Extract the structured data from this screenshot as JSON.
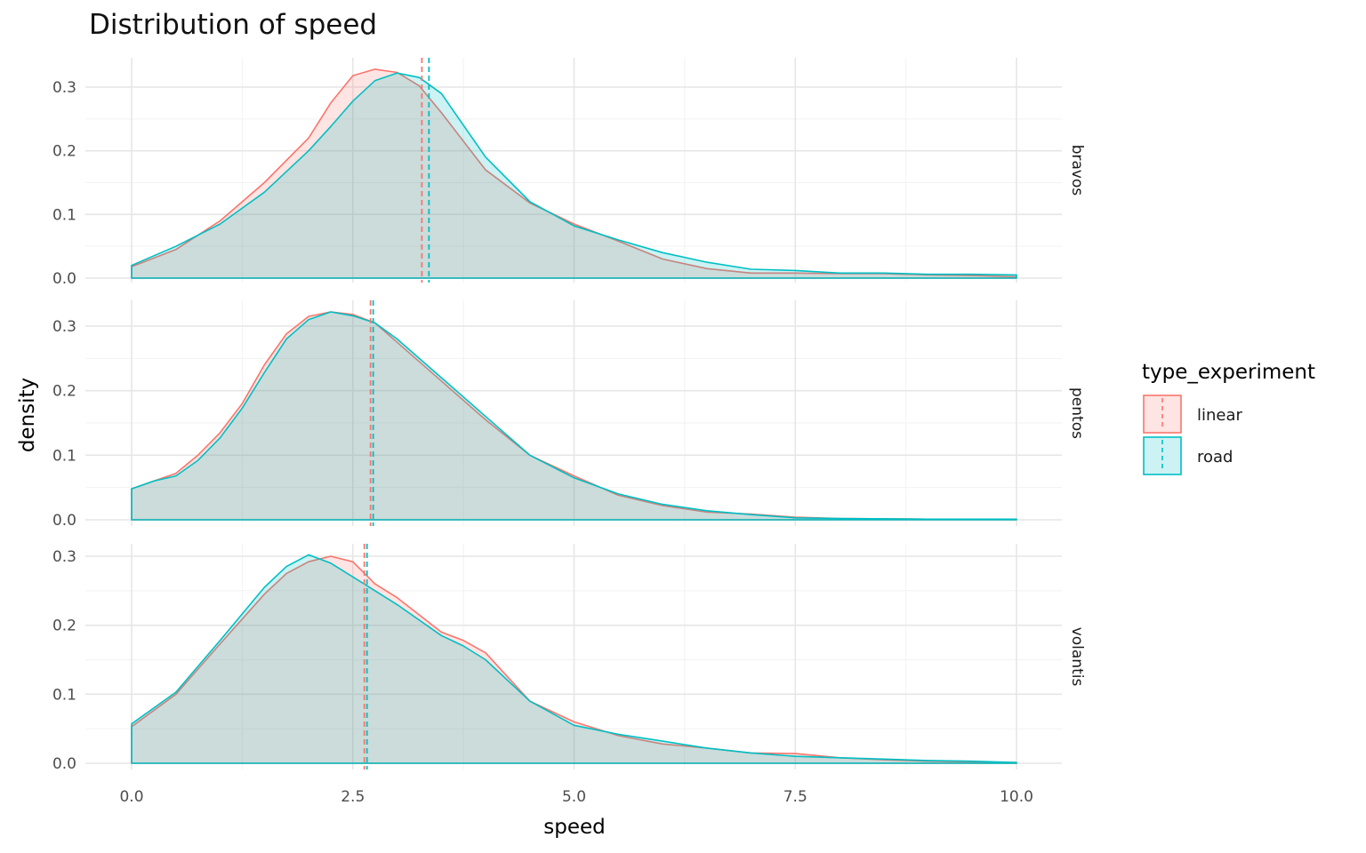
{
  "chart_data": {
    "type": "area",
    "title": "Distribution of speed",
    "xlabel": "speed",
    "ylabel": "density",
    "xlim": [
      -0.5,
      10.5
    ],
    "x_ticks": [
      "0.0",
      "2.5",
      "5.0",
      "7.5",
      "10.0"
    ],
    "y_ticks": [
      "0.0",
      "0.1",
      "0.2",
      "0.3"
    ],
    "grid": true,
    "legend": {
      "title": "type_experiment",
      "placement": "right",
      "entries": [
        "linear",
        "road"
      ]
    },
    "colors": {
      "linear": "#F8766D",
      "road": "#00BFC4"
    },
    "panels": [
      {
        "label": "bravos",
        "ylim": [
          0,
          0.33
        ],
        "means": {
          "linear": 3.28,
          "road": 3.36
        },
        "series": [
          {
            "name": "linear",
            "x": [
              0,
              0.5,
              1.0,
              1.5,
              2.0,
              2.25,
              2.5,
              2.75,
              3.0,
              3.25,
              3.5,
              4.0,
              4.5,
              5.0,
              5.5,
              6.0,
              6.5,
              7.0,
              7.5,
              8.0,
              8.5,
              9.0,
              9.5,
              10.0
            ],
            "y": [
              0.018,
              0.045,
              0.09,
              0.15,
              0.22,
              0.275,
              0.318,
              0.328,
              0.323,
              0.302,
              0.26,
              0.17,
              0.118,
              0.085,
              0.058,
              0.03,
              0.015,
              0.008,
              0.008,
              0.007,
              0.007,
              0.005,
              0.004,
              0.002
            ]
          },
          {
            "name": "road",
            "x": [
              0,
              0.5,
              1.0,
              1.5,
              2.0,
              2.25,
              2.5,
              2.75,
              3.0,
              3.25,
              3.5,
              4.0,
              4.5,
              5.0,
              5.5,
              6.0,
              6.5,
              7.0,
              7.5,
              8.0,
              8.5,
              9.0,
              9.5,
              10.0
            ],
            "y": [
              0.02,
              0.05,
              0.085,
              0.135,
              0.2,
              0.238,
              0.278,
              0.31,
              0.322,
              0.315,
              0.29,
              0.19,
              0.12,
              0.082,
              0.06,
              0.04,
              0.025,
              0.014,
              0.012,
              0.008,
              0.008,
              0.006,
              0.006,
              0.005
            ]
          }
        ]
      },
      {
        "label": "pentos",
        "ylim": [
          0,
          0.33
        ],
        "means": {
          "linear": 2.7,
          "road": 2.73
        },
        "series": [
          {
            "name": "linear",
            "x": [
              0,
              0.25,
              0.5,
              0.75,
              1.0,
              1.25,
              1.5,
              1.75,
              2.0,
              2.25,
              2.5,
              2.75,
              3.0,
              3.5,
              4.0,
              4.5,
              5.0,
              5.5,
              6.0,
              6.5,
              7.0,
              7.5,
              8.0,
              9.0,
              10.0
            ],
            "y": [
              0.048,
              0.06,
              0.072,
              0.1,
              0.135,
              0.18,
              0.24,
              0.288,
              0.315,
              0.322,
              0.318,
              0.305,
              0.275,
              0.215,
              0.155,
              0.1,
              0.068,
              0.038,
              0.022,
              0.012,
              0.009,
              0.004,
              0.002,
              0.001,
              0.001
            ]
          },
          {
            "name": "road",
            "x": [
              0,
              0.25,
              0.5,
              0.75,
              1.0,
              1.25,
              1.5,
              1.75,
              2.0,
              2.25,
              2.5,
              2.75,
              3.0,
              3.5,
              4.0,
              4.5,
              5.0,
              5.5,
              6.0,
              6.5,
              7.0,
              7.5,
              8.0,
              9.0,
              10.0
            ],
            "y": [
              0.048,
              0.06,
              0.068,
              0.092,
              0.127,
              0.173,
              0.228,
              0.28,
              0.31,
              0.322,
              0.316,
              0.305,
              0.28,
              0.22,
              0.16,
              0.1,
              0.065,
              0.04,
              0.024,
              0.014,
              0.008,
              0.003,
              0.002,
              0.001,
              0.001
            ]
          }
        ]
      },
      {
        "label": "volantis",
        "ylim": [
          0,
          0.31
        ],
        "means": {
          "linear": 2.63,
          "road": 2.66
        },
        "series": [
          {
            "name": "linear",
            "x": [
              0,
              0.5,
              1.0,
              1.5,
              1.75,
              2.0,
              2.25,
              2.5,
              2.75,
              3.0,
              3.5,
              3.75,
              4.0,
              4.5,
              5.0,
              5.5,
              6.0,
              6.5,
              7.0,
              7.5,
              8.0,
              8.5,
              9.0,
              9.5,
              10.0
            ],
            "y": [
              0.053,
              0.1,
              0.173,
              0.245,
              0.275,
              0.292,
              0.3,
              0.292,
              0.26,
              0.24,
              0.19,
              0.178,
              0.16,
              0.09,
              0.06,
              0.04,
              0.028,
              0.022,
              0.015,
              0.014,
              0.008,
              0.005,
              0.003,
              0.002,
              0.001
            ]
          },
          {
            "name": "road",
            "x": [
              0,
              0.5,
              1.0,
              1.5,
              1.75,
              2.0,
              2.25,
              2.5,
              2.75,
              3.0,
              3.5,
              3.75,
              4.0,
              4.5,
              5.0,
              5.5,
              6.0,
              6.5,
              7.0,
              7.5,
              8.0,
              8.5,
              9.0,
              9.5,
              10.0
            ],
            "y": [
              0.057,
              0.103,
              0.178,
              0.255,
              0.285,
              0.302,
              0.29,
              0.27,
              0.25,
              0.23,
              0.185,
              0.17,
              0.15,
              0.09,
              0.055,
              0.042,
              0.032,
              0.022,
              0.015,
              0.01,
              0.008,
              0.006,
              0.004,
              0.003,
              0.001
            ]
          }
        ]
      }
    ]
  }
}
